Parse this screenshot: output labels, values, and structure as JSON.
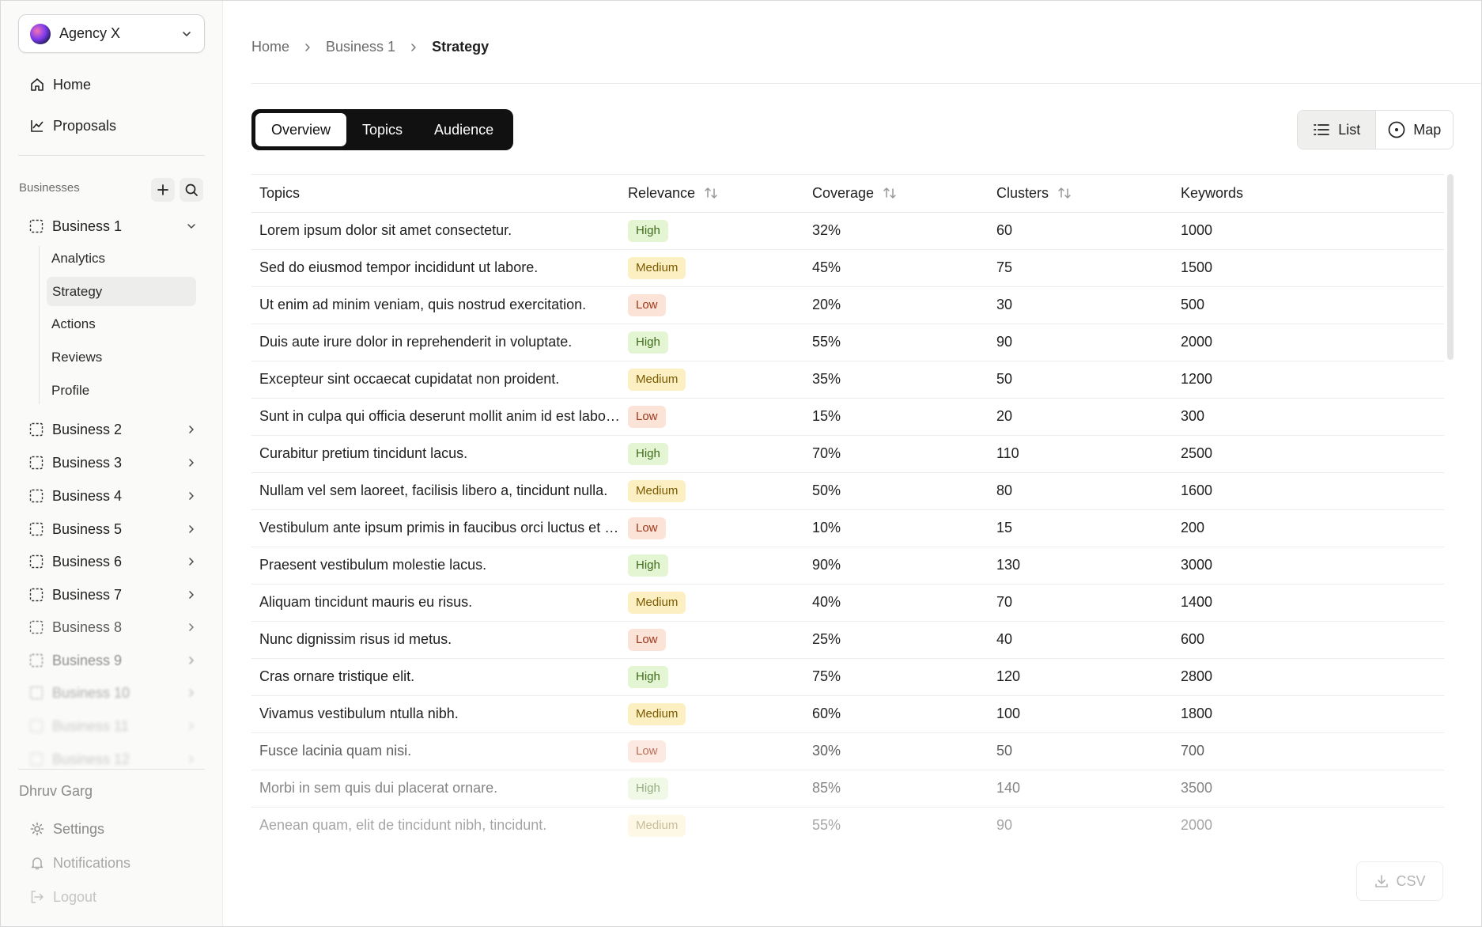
{
  "sidebar": {
    "agency": {
      "name": "Agency X",
      "logo_icon": "agency-logo-icon"
    },
    "nav": [
      {
        "label": "Home",
        "icon": "home-icon"
      },
      {
        "label": "Proposals",
        "icon": "chart-line-icon"
      }
    ],
    "businesses_label": "Businesses",
    "businesses": [
      {
        "label": "Business 1",
        "expanded": true
      },
      {
        "label": "Business 2"
      },
      {
        "label": "Business 3"
      },
      {
        "label": "Business 4"
      },
      {
        "label": "Business 5"
      },
      {
        "label": "Business 6"
      },
      {
        "label": "Business 7"
      },
      {
        "label": "Business 8"
      },
      {
        "label": "Business 9"
      },
      {
        "label": "Business 10"
      },
      {
        "label": "Business 11"
      },
      {
        "label": "Business 12"
      }
    ],
    "subnav": [
      {
        "label": "Analytics"
      },
      {
        "label": "Strategy",
        "active": true
      },
      {
        "label": "Actions"
      },
      {
        "label": "Reviews"
      },
      {
        "label": "Profile"
      }
    ],
    "user_name": "Dhruv Garg",
    "footer": [
      {
        "label": "Settings",
        "icon": "gear-icon"
      },
      {
        "label": "Notifications",
        "icon": "bell-icon"
      },
      {
        "label": "Logout",
        "icon": "logout-icon"
      }
    ]
  },
  "breadcrumb": [
    "Home",
    "Business 1",
    "Strategy"
  ],
  "tabs": [
    {
      "label": "Overview",
      "active": true
    },
    {
      "label": "Topics"
    },
    {
      "label": "Audience"
    }
  ],
  "view_toggle": [
    {
      "label": "List",
      "icon": "list-icon",
      "active": true
    },
    {
      "label": "Map",
      "icon": "map-target-icon"
    }
  ],
  "table": {
    "columns": [
      "Topics",
      "Relevance",
      "Coverage",
      "Clusters",
      "Keywords"
    ],
    "sortable": [
      false,
      true,
      true,
      true,
      false
    ],
    "rows": [
      [
        "Lorem ipsum dolor sit amet consectetur.",
        "High",
        "32%",
        "60",
        "1000"
      ],
      [
        "Sed do eiusmod tempor incididunt ut labore.",
        "Medium",
        "45%",
        "75",
        "1500"
      ],
      [
        "Ut enim ad minim veniam, quis nostrud exercitation.",
        "Low",
        "20%",
        "30",
        "500"
      ],
      [
        "Duis aute irure dolor in reprehenderit in voluptate.",
        "High",
        "55%",
        "90",
        "2000"
      ],
      [
        "Excepteur sint occaecat cupidatat non proident.",
        "Medium",
        "35%",
        "50",
        "1200"
      ],
      [
        "Sunt in culpa qui officia deserunt mollit anim id est laborum.",
        "Low",
        "15%",
        "20",
        "300"
      ],
      [
        "Curabitur pretium tincidunt lacus.",
        "High",
        "70%",
        "110",
        "2500"
      ],
      [
        "Nullam vel sem laoreet, facilisis libero a, tincidunt nulla.",
        "Medium",
        "50%",
        "80",
        "1600"
      ],
      [
        "Vestibulum ante ipsum primis in faucibus orci luctus et ultrices.",
        "Low",
        "10%",
        "15",
        "200"
      ],
      [
        "Praesent vestibulum molestie lacus.",
        "High",
        "90%",
        "130",
        "3000"
      ],
      [
        "Aliquam tincidunt mauris eu risus.",
        "Medium",
        "40%",
        "70",
        "1400"
      ],
      [
        "Nunc dignissim risus id metus.",
        "Low",
        "25%",
        "40",
        "600"
      ],
      [
        "Cras ornare tristique elit.",
        "High",
        "75%",
        "120",
        "2800"
      ],
      [
        "Vivamus vestibulum ntulla nibh.",
        "Medium",
        "60%",
        "100",
        "1800"
      ],
      [
        "Fusce lacinia quam nisi.",
        "Low",
        "30%",
        "50",
        "700"
      ],
      [
        "Morbi in sem quis dui placerat ornare.",
        "High",
        "85%",
        "140",
        "3500"
      ],
      [
        "Aenean quam, elit de tincidunt nibh, tincidunt.",
        "Medium",
        "55%",
        "90",
        "2000"
      ]
    ]
  },
  "csv_button": {
    "label": "CSV",
    "icon": "download-icon"
  }
}
